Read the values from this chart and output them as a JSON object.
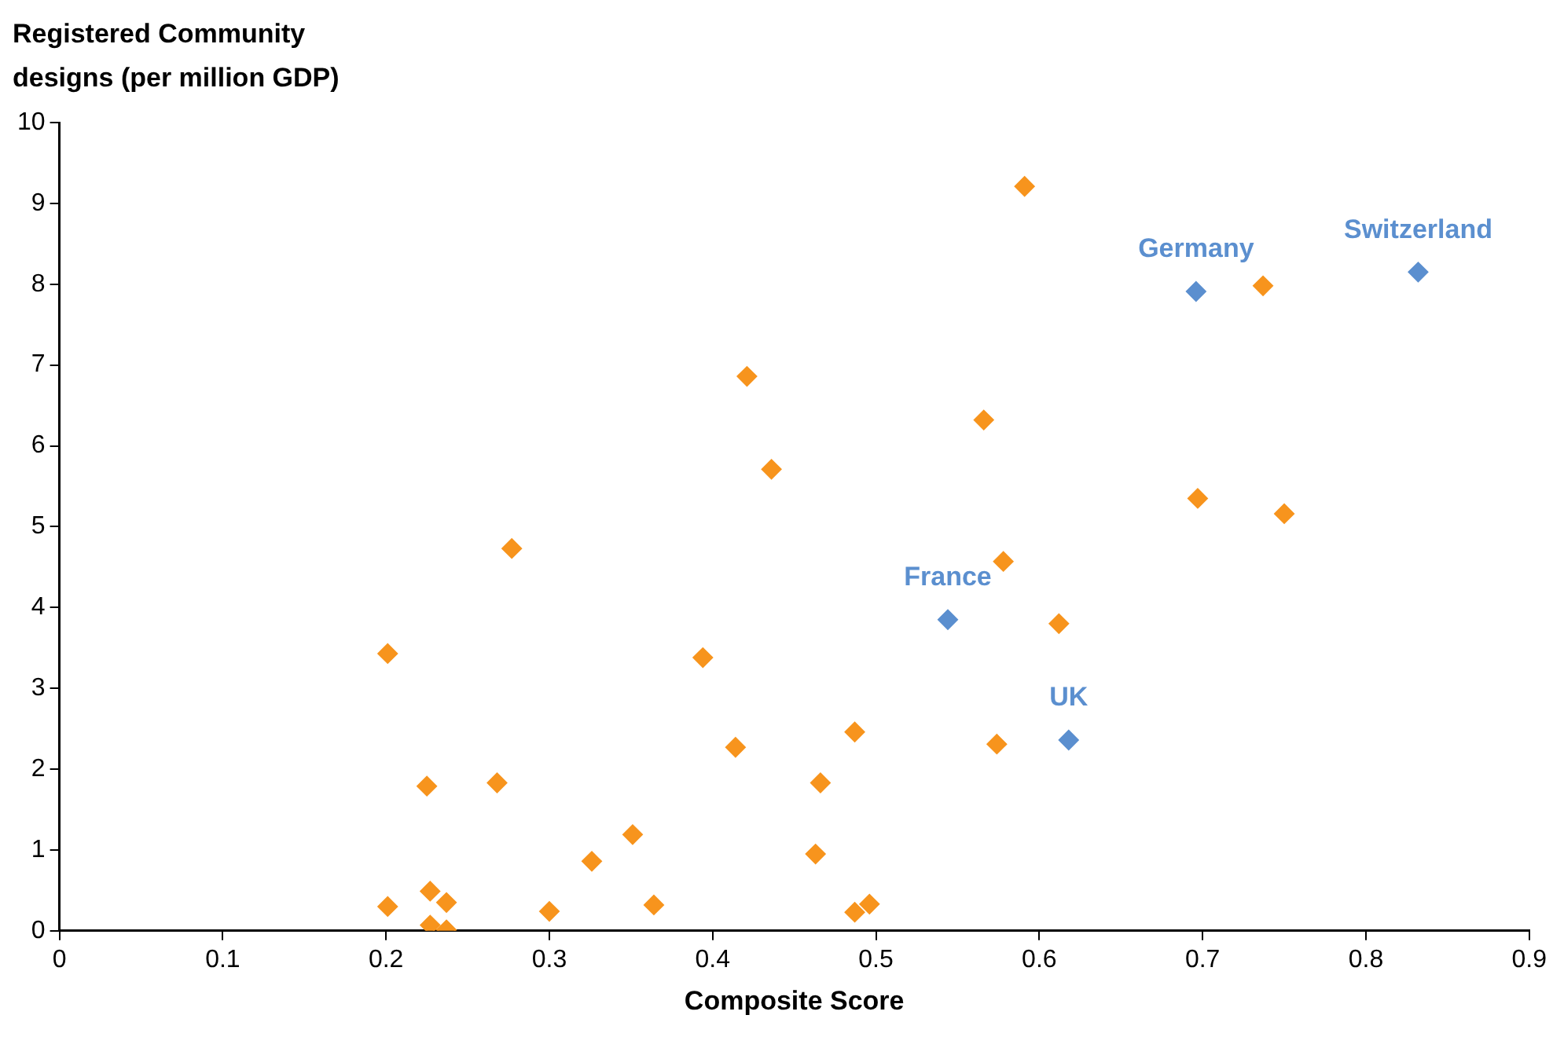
{
  "chart_data": {
    "type": "scatter",
    "xlabel": "Composite Score",
    "ylabel": "Registered Community designs (per million GDP)",
    "xlim": [
      0,
      0.9
    ],
    "xticks": [
      0,
      0.1,
      0.2,
      0.3,
      0.4,
      0.5,
      0.6,
      0.7,
      0.8,
      0.9
    ],
    "ylim": [
      0,
      10
    ],
    "yticks": [
      0,
      1,
      2,
      3,
      4,
      5,
      6,
      7,
      8,
      9,
      10
    ],
    "grid": false,
    "legend": false,
    "marker": "diamond",
    "series": [
      {
        "color": "#f7941d",
        "x": [
          0.201,
          0.201,
          0.225,
          0.227,
          0.227,
          0.237,
          0.237,
          0.268,
          0.277,
          0.3,
          0.326,
          0.351,
          0.364,
          0.394,
          0.414,
          0.421,
          0.436,
          0.463,
          0.466,
          0.487,
          0.487,
          0.496,
          0.566,
          0.574,
          0.578,
          0.591,
          0.612,
          0.697,
          0.737,
          0.75
        ],
        "values": [
          3.43,
          0.3,
          1.79,
          0.49,
          0.07,
          0.35,
          0.01,
          1.83,
          4.73,
          0.24,
          0.86,
          1.19,
          0.32,
          3.38,
          2.27,
          6.86,
          5.71,
          0.95,
          1.83,
          2.46,
          0.23,
          0.33,
          6.32,
          2.31,
          4.57,
          9.21,
          3.8,
          5.35,
          7.98,
          5.16
        ]
      },
      {
        "color": "#5b8fcf",
        "x": [
          0.544,
          0.618,
          0.696,
          0.832
        ],
        "values": [
          3.85,
          2.36,
          7.91,
          8.15
        ]
      }
    ],
    "annotations": [
      {
        "text": "France",
        "x": 0.544,
        "y": 3.85
      },
      {
        "text": "UK",
        "x": 0.618,
        "y": 2.36
      },
      {
        "text": "Germany",
        "x": 0.696,
        "y": 7.91
      },
      {
        "text": "Switzerland",
        "x": 0.832,
        "y": 8.15
      }
    ]
  }
}
